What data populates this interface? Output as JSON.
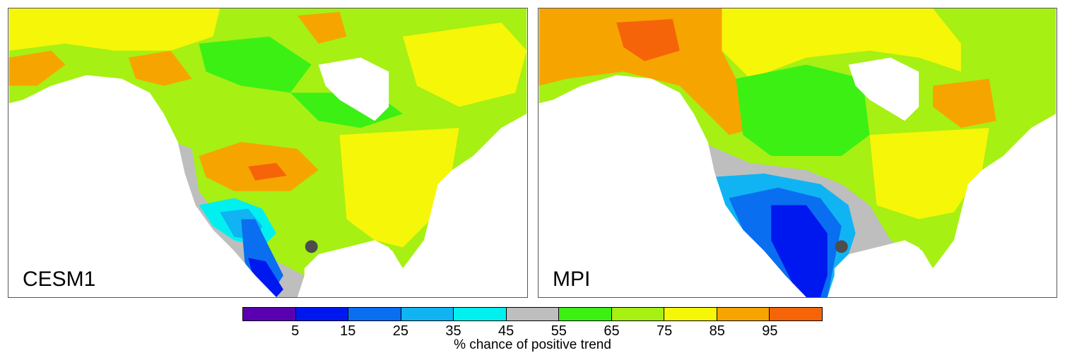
{
  "panels": [
    {
      "label": "CESM1"
    },
    {
      "label": "MPI"
    }
  ],
  "colorbar": {
    "title": "% chance of positive trend",
    "ticks": [
      "5",
      "15",
      "25",
      "35",
      "45",
      "55",
      "65",
      "75",
      "85",
      "95"
    ],
    "colors": [
      "#5b00b0",
      "#0018f0",
      "#0a6ef0",
      "#10b4f2",
      "#00f0f0",
      "#bebebe",
      "#3cf014",
      "#a6f014",
      "#f6f608",
      "#f6a500",
      "#f6640a"
    ]
  },
  "marker_color": "#4d4d4d",
  "land_colors": {
    "gray": "#bebebe",
    "green": "#3cf014",
    "lightgreen": "#a6f014",
    "yellow": "#f6f608",
    "orange": "#f6a500",
    "red": "#f6640a",
    "cyan": "#00f0f0",
    "lightblue": "#10b4f2",
    "blue": "#0a6ef0",
    "darkblue": "#0018f0"
  }
}
